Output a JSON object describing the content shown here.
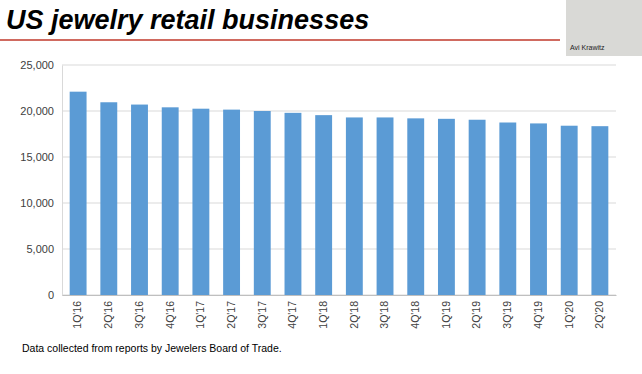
{
  "chart_data": {
    "type": "bar",
    "title": "US jewelry retail businesses",
    "annotations": [
      "Data collected from reports by Jewelers Board of Trade.",
      "Avi Krawitz"
    ],
    "categories": [
      "1Q'16",
      "2Q'16",
      "3Q'16",
      "4Q'16",
      "1Q'17",
      "2Q'17",
      "3Q'17",
      "4Q'17",
      "1Q'18",
      "2Q'18",
      "3Q'18",
      "4Q'18",
      "1Q'19",
      "2Q'19",
      "3Q'19",
      "4Q'19",
      "1Q'20",
      "2Q'20"
    ],
    "values": [
      22100,
      20950,
      20700,
      20400,
      20250,
      20150,
      20000,
      19800,
      19550,
      19300,
      19300,
      19200,
      19150,
      19050,
      18750,
      18650,
      18400,
      18350
    ],
    "color": "#5b9bd5",
    "ylim": [
      0,
      25000
    ],
    "yticks": [
      0,
      {
        "value": 5000,
        "label": "5,000"
      },
      {
        "value": 10000,
        "label": "10,000"
      },
      {
        "value": 15000,
        "label": "15,000"
      },
      {
        "value": 20000,
        "label": "20,000"
      },
      {
        "value": 25000,
        "label": "25,000"
      }
    ],
    "grid": true
  }
}
